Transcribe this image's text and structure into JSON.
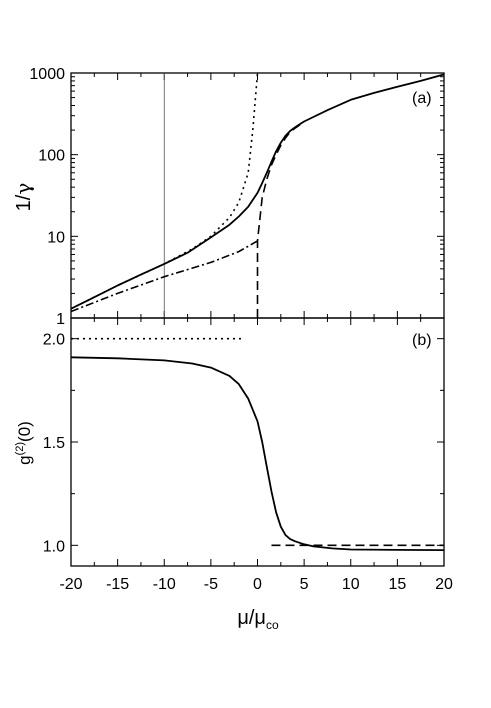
{
  "chart_data": [
    {
      "panel": "(a)",
      "type": "line",
      "xlim": [
        -20,
        20
      ],
      "ylim": [
        1,
        1000
      ],
      "yscale": "log",
      "grid": false,
      "ylabel_main": "1/",
      "ylabel_greek": "γ",
      "x_ticks": [
        -20,
        -15,
        -10,
        -5,
        0,
        5,
        10,
        15,
        20
      ],
      "y_ticks": [
        {
          "value": 1,
          "label": "1"
        },
        {
          "value": 10,
          "label": "10"
        },
        {
          "value": 100,
          "label": "100"
        },
        {
          "value": 1000,
          "label": "1000"
        }
      ],
      "vertical_reference_line": -10,
      "series": [
        {
          "style": "solid",
          "x": [
            -20,
            -17.5,
            -15,
            -12.5,
            -10,
            -7.5,
            -5,
            -3,
            -2,
            -1,
            0,
            0.5,
            1,
            1.5,
            2,
            2.5,
            3,
            3.5,
            4,
            4.5,
            5,
            7.5,
            10,
            12.5,
            15,
            17.5,
            20
          ],
          "y": [
            1.3,
            1.8,
            2.5,
            3.4,
            4.6,
            6.3,
            9.7,
            13.9,
            17.5,
            23,
            34,
            45,
            60,
            82,
            110,
            140,
            170,
            195,
            215,
            235,
            255,
            350,
            470,
            570,
            680,
            800,
            960
          ]
        },
        {
          "style": "dotted",
          "x": [
            -20,
            -15,
            -10,
            -7,
            -5,
            -3,
            -2,
            -1,
            -0.5,
            0
          ],
          "y": [
            1.3,
            2.5,
            4.6,
            7,
            10,
            17,
            26,
            60,
            200,
            1000
          ]
        },
        {
          "style": "dashdot",
          "x": [
            -20,
            -15,
            -10,
            -5,
            -2,
            0
          ],
          "y": [
            1.2,
            2.0,
            3.2,
            4.8,
            6.5,
            8.8
          ]
        },
        {
          "style": "dashed",
          "x": [
            0,
            0,
            0.5,
            1,
            1.5,
            2,
            2.5,
            3,
            3.5,
            4,
            4.5,
            5
          ],
          "y": [
            1,
            8.8,
            30,
            50,
            75,
            100,
            130,
            160,
            190,
            210,
            230,
            250
          ]
        }
      ]
    },
    {
      "panel": "(b)",
      "type": "line",
      "xlim": [
        -20,
        20
      ],
      "ylim": [
        0.9,
        2.1
      ],
      "grid": false,
      "xlabel_main": "μ/μ",
      "xlabel_sub": "co",
      "ylabel_main": "g",
      "ylabel_sup": "(2)",
      "ylabel_tail": "(0)",
      "x_ticks": [
        -20,
        -15,
        -10,
        -5,
        0,
        5,
        10,
        15,
        20
      ],
      "y_ticks": [
        {
          "value": 1.0,
          "label": "1.0"
        },
        {
          "value": 1.5,
          "label": "1.5"
        },
        {
          "value": 2.0,
          "label": "2.0"
        }
      ],
      "series": [
        {
          "style": "solid",
          "x": [
            -20,
            -15,
            -10,
            -7,
            -5,
            -3,
            -2,
            -1,
            0,
            0.5,
            1,
            1.5,
            2,
            2.5,
            3,
            3.5,
            4,
            5,
            6,
            7,
            8,
            10,
            15,
            20
          ],
          "y": [
            1.91,
            1.905,
            1.895,
            1.88,
            1.86,
            1.82,
            1.78,
            1.71,
            1.6,
            1.5,
            1.38,
            1.26,
            1.16,
            1.09,
            1.05,
            1.03,
            1.02,
            1.005,
            0.995,
            0.99,
            0.985,
            0.98,
            0.978,
            0.977
          ]
        },
        {
          "style": "dotted",
          "x": [
            -20,
            -1.5
          ],
          "y": [
            2.0,
            2.0
          ]
        },
        {
          "style": "dashed",
          "x": [
            1.5,
            20
          ],
          "y": [
            1.0,
            1.0
          ]
        }
      ]
    }
  ]
}
